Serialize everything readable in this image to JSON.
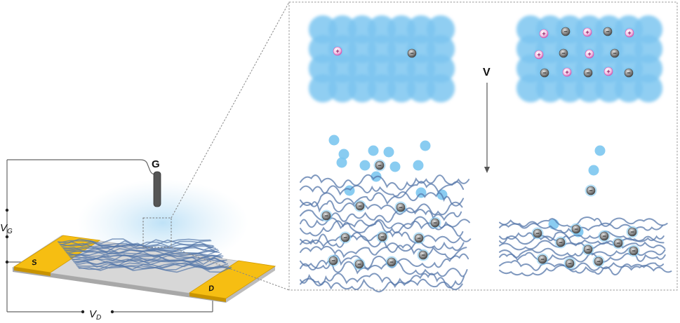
{
  "labels": {
    "gate": "G",
    "vg_main": "V",
    "vg_sub": "G",
    "vd_main": "V",
    "vd_sub": "D",
    "source": "S",
    "drain": "D",
    "voltage_arrow": "V"
  },
  "ions": {
    "cation_symbol": "+",
    "anion_symbol": "−"
  },
  "colors": {
    "electrolyte": "#7cc6f0",
    "electrode": "#f5b800",
    "substrate": "#cfcfcf",
    "polymer": "#5577aa",
    "cation": "#d94fb0",
    "anion": "#6f6f6f",
    "frame": "#999999"
  }
}
